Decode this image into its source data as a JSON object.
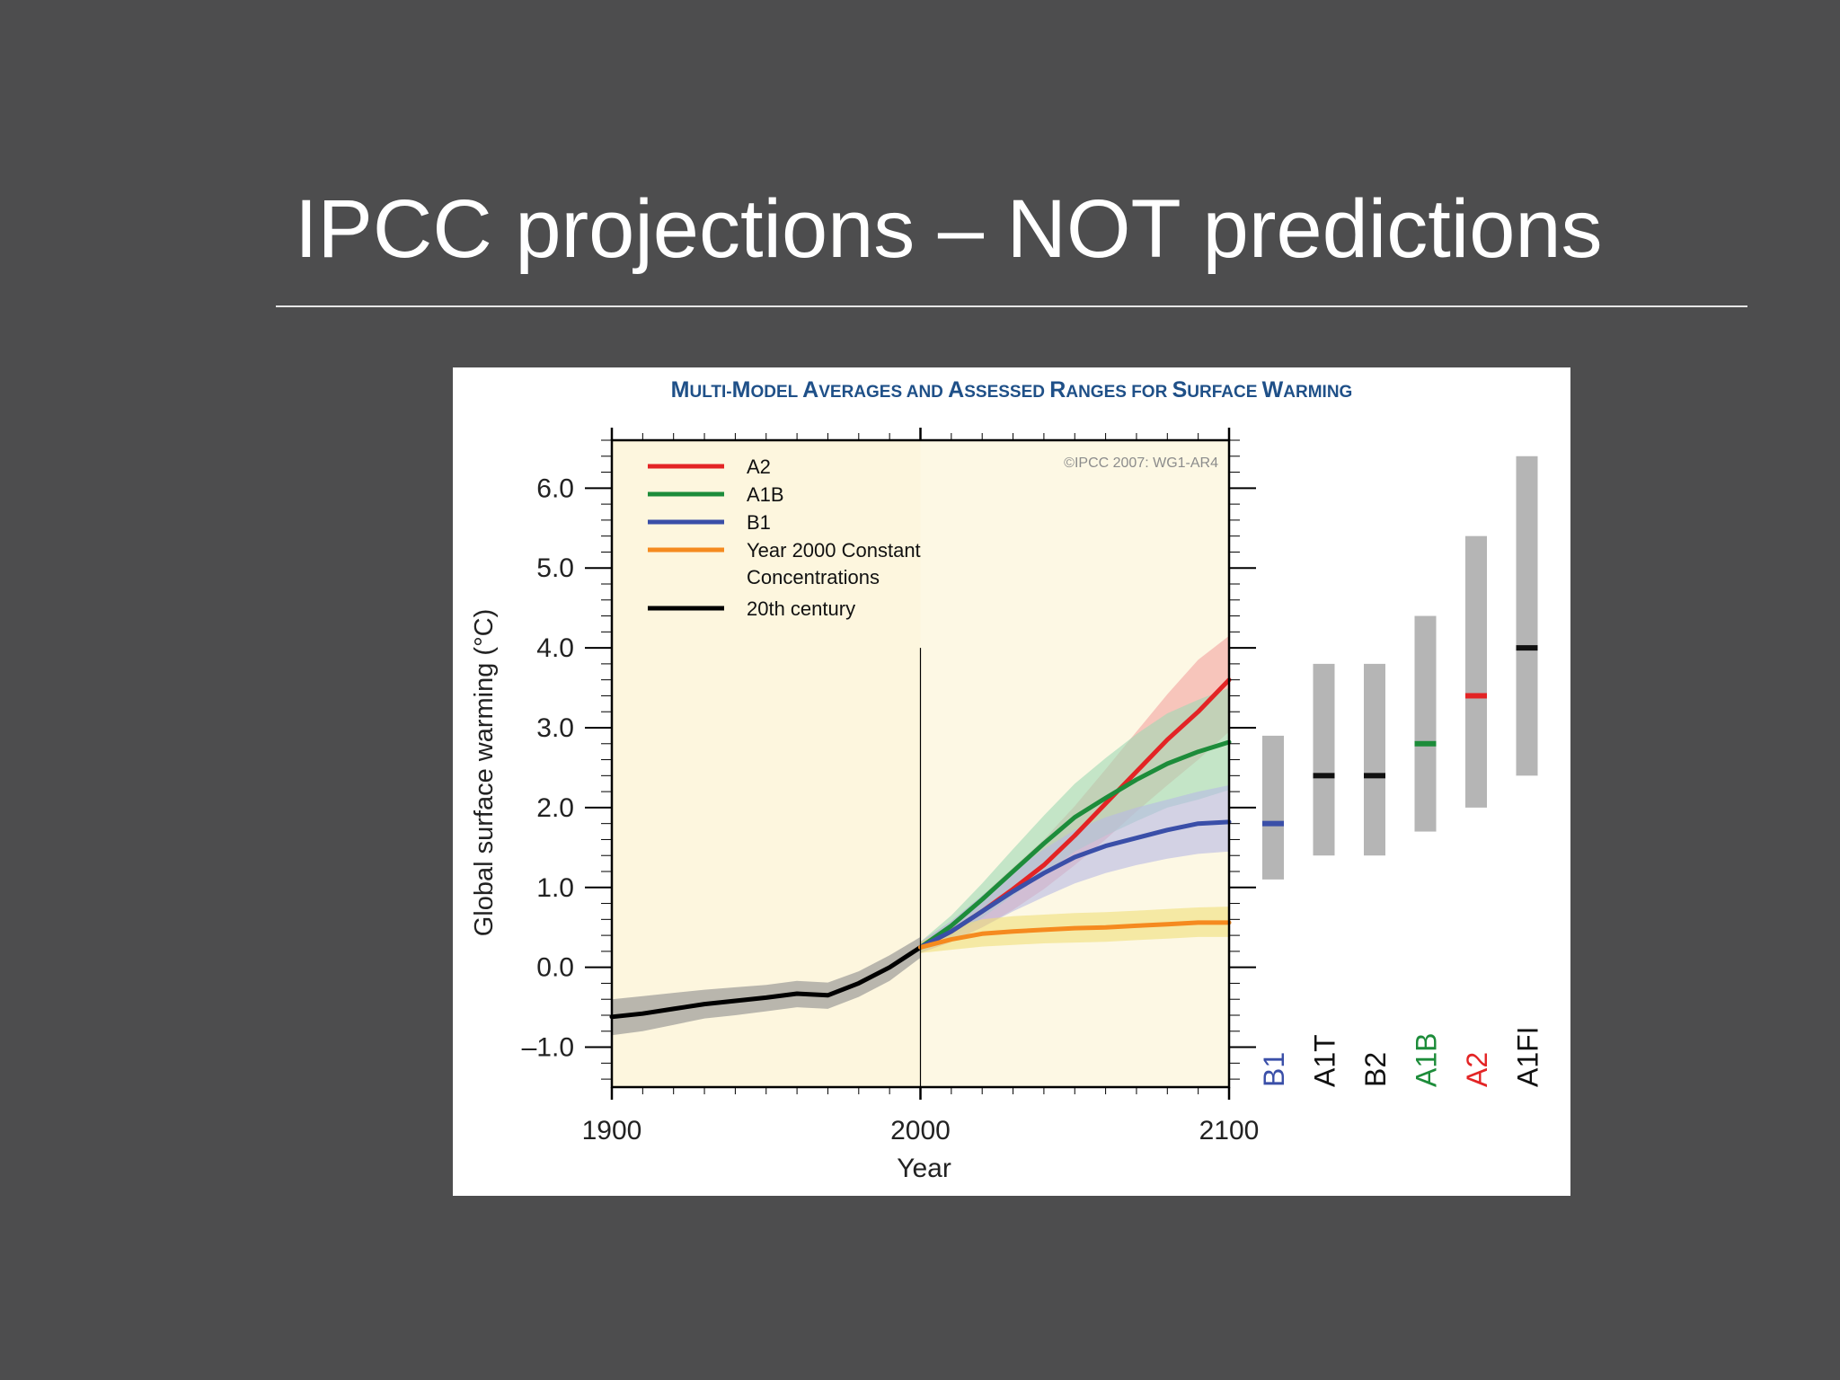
{
  "slide": {
    "title": "IPCC projections – NOT predictions"
  },
  "figure": {
    "title_parts": [
      {
        "big": "M",
        "small": "ULTI-"
      },
      {
        "big": "M",
        "small": "ODEL "
      },
      {
        "big": "A",
        "small": "VERAGES AND "
      },
      {
        "big": "A",
        "small": "SSESSED "
      },
      {
        "big": "R",
        "small": "ANGES FOR "
      },
      {
        "big": "S",
        "small": "URFACE "
      },
      {
        "big": "W",
        "small": "ARMING"
      }
    ],
    "copyright": "©IPCC 2007: WG1-AR4"
  },
  "chart_data": {
    "type": "line",
    "xlabel": "Year",
    "ylabel": "Global surface warming (°C)",
    "xlim": [
      1900,
      2100
    ],
    "ylim": [
      -1.5,
      6.6
    ],
    "x_ticks": [
      1900,
      2000,
      2100
    ],
    "y_ticks": [
      {
        "v": 6.0,
        "label": "6.0"
      },
      {
        "v": 5.0,
        "label": "5.0"
      },
      {
        "v": 4.0,
        "label": "4.0"
      },
      {
        "v": 3.0,
        "label": "3.0"
      },
      {
        "v": 2.0,
        "label": "2.0"
      },
      {
        "v": 1.0,
        "label": "1.0"
      },
      {
        "v": 0.0,
        "label": "0.0"
      },
      {
        "v": -1.0,
        "label": "–1.0"
      }
    ],
    "series": [
      {
        "name": "20th century",
        "color": "#000000",
        "band": "#8c8c8c",
        "x": [
          1900,
          1910,
          1920,
          1930,
          1940,
          1950,
          1960,
          1970,
          1980,
          1990,
          2000
        ],
        "y": [
          -0.62,
          -0.58,
          -0.52,
          -0.46,
          -0.42,
          -0.38,
          -0.33,
          -0.35,
          -0.2,
          0.0,
          0.25
        ],
        "lower": [
          -0.85,
          -0.8,
          -0.72,
          -0.64,
          -0.6,
          -0.55,
          -0.5,
          -0.52,
          -0.37,
          -0.17,
          0.12
        ],
        "upper": [
          -0.4,
          -0.36,
          -0.32,
          -0.28,
          -0.25,
          -0.22,
          -0.17,
          -0.19,
          -0.05,
          0.15,
          0.38
        ]
      },
      {
        "name": "A2",
        "color": "#e32425",
        "band": "#f3a4a0",
        "x": [
          2000,
          2010,
          2020,
          2030,
          2040,
          2050,
          2060,
          2070,
          2080,
          2090,
          2100
        ],
        "y": [
          0.25,
          0.45,
          0.7,
          0.98,
          1.28,
          1.65,
          2.05,
          2.45,
          2.85,
          3.2,
          3.6
        ],
        "lower": [
          0.18,
          0.32,
          0.5,
          0.72,
          0.98,
          1.28,
          1.6,
          1.95,
          2.28,
          2.6,
          2.95
        ],
        "upper": [
          0.32,
          0.58,
          0.9,
          1.25,
          1.6,
          2.02,
          2.48,
          2.95,
          3.42,
          3.85,
          4.15
        ]
      },
      {
        "name": "A1B",
        "color": "#1d8c3a",
        "band": "#9fd8b4",
        "x": [
          2000,
          2010,
          2020,
          2030,
          2040,
          2050,
          2060,
          2070,
          2080,
          2090,
          2100
        ],
        "y": [
          0.25,
          0.52,
          0.85,
          1.2,
          1.55,
          1.88,
          2.12,
          2.35,
          2.55,
          2.7,
          2.82
        ],
        "lower": [
          0.18,
          0.38,
          0.62,
          0.9,
          1.18,
          1.45,
          1.65,
          1.83,
          2.0,
          2.1,
          2.22
        ],
        "upper": [
          0.32,
          0.65,
          1.05,
          1.48,
          1.9,
          2.3,
          2.62,
          2.92,
          3.18,
          3.35,
          3.5
        ]
      },
      {
        "name": "B1",
        "color": "#3a4fa8",
        "band": "#b7b9e4",
        "x": [
          2000,
          2010,
          2020,
          2030,
          2040,
          2050,
          2060,
          2070,
          2080,
          2090,
          2100
        ],
        "y": [
          0.25,
          0.45,
          0.7,
          0.95,
          1.18,
          1.38,
          1.52,
          1.62,
          1.72,
          1.8,
          1.82
        ],
        "lower": [
          0.18,
          0.32,
          0.5,
          0.7,
          0.88,
          1.05,
          1.18,
          1.28,
          1.36,
          1.42,
          1.45
        ],
        "upper": [
          0.32,
          0.58,
          0.9,
          1.2,
          1.48,
          1.72,
          1.88,
          2.0,
          2.1,
          2.2,
          2.28
        ]
      },
      {
        "name": "Year 2000 Constant Concentrations",
        "legend_lines": [
          "Year 2000 Constant",
          "Concentrations"
        ],
        "color": "#f58a1f",
        "band": "#f0e07a",
        "x": [
          2000,
          2010,
          2020,
          2030,
          2040,
          2050,
          2060,
          2070,
          2080,
          2090,
          2100
        ],
        "y": [
          0.25,
          0.35,
          0.42,
          0.45,
          0.47,
          0.49,
          0.5,
          0.52,
          0.54,
          0.56,
          0.56
        ],
        "lower": [
          0.18,
          0.22,
          0.26,
          0.28,
          0.3,
          0.31,
          0.32,
          0.34,
          0.36,
          0.38,
          0.38
        ],
        "upper": [
          0.32,
          0.5,
          0.6,
          0.64,
          0.66,
          0.68,
          0.69,
          0.71,
          0.73,
          0.75,
          0.76
        ]
      }
    ],
    "legend_order": [
      "A2",
      "A1B",
      "B1",
      "Year 2000 Constant Concentrations",
      "20th century"
    ],
    "legend_placement": "top-left",
    "ranges": [
      {
        "label": "B1",
        "low": 1.1,
        "high": 2.9,
        "best": 1.8,
        "color": "#3a4fa8"
      },
      {
        "label": "A1T",
        "low": 1.4,
        "high": 3.8,
        "best": 2.4,
        "color": "#111111"
      },
      {
        "label": "B2",
        "low": 1.4,
        "high": 3.8,
        "best": 2.4,
        "color": "#111111"
      },
      {
        "label": "A1B",
        "low": 1.7,
        "high": 4.4,
        "best": 2.8,
        "color": "#1d8c3a"
      },
      {
        "label": "A2",
        "low": 2.0,
        "high": 5.4,
        "best": 3.4,
        "color": "#e32425"
      },
      {
        "label": "A1FI",
        "low": 2.4,
        "high": 6.4,
        "best": 4.0,
        "color": "#111111"
      }
    ],
    "range_bar_color": "#b5b5b5",
    "grid": false
  }
}
